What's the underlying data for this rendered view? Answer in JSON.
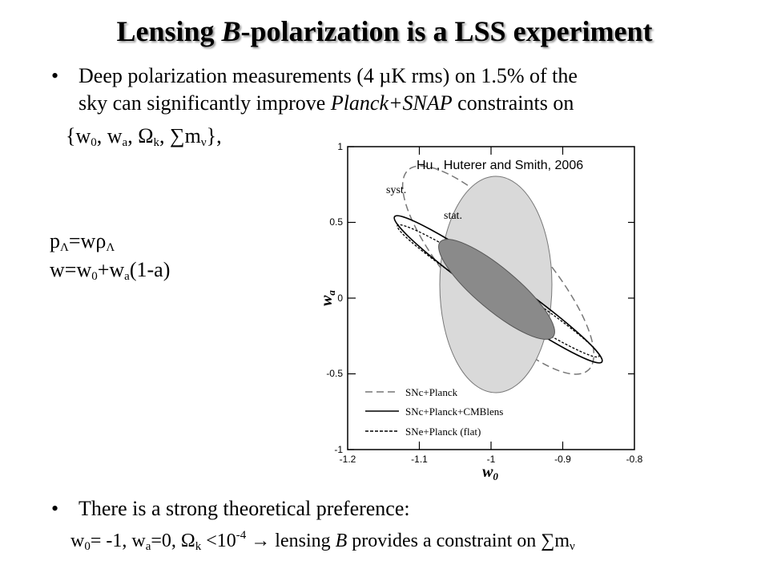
{
  "title": {
    "pre": "Lensing ",
    "italic": "B",
    "post": "-polarization is a LSS experiment"
  },
  "bullet1": {
    "line1": "Deep polarization measurements (4 µK rms) on 1.5% of the",
    "line2_pre": "sky can significantly improve ",
    "line2_italic": "Planck+SNAP",
    "line2_post": " constraints on"
  },
  "params": {
    "open": "{w",
    "s0": "0",
    "c1": ", w",
    "sa": "a",
    "c2": ", Ω",
    "sk": "k",
    "c3": ", ∑m",
    "snu": "ν",
    "close": "},"
  },
  "eq1": {
    "p": "p",
    "s1": "Λ",
    "mid": "=wρ",
    "s2": "Λ"
  },
  "eq2": {
    "a": "w=w",
    "s0": "0",
    "b": "+w",
    "sa": "a",
    "c": "(1-a)"
  },
  "bullet2": "There is a strong theoretical preference:",
  "bottom": {
    "a": "w",
    "s0": "0",
    "b": "= -1, w",
    "sa": "a",
    "c": "=0, Ω",
    "sk": "k",
    "d": " <10",
    "exp": "-4",
    "e": " → lensing ",
    "italic": "B",
    "f": " provides a constraint on ∑m",
    "snu": "ν"
  },
  "figure": {
    "credit": "Hu , Huterer and Smith, 2006",
    "label_syst": "syst.",
    "label_stat": "stat.",
    "y_axis_label": "w",
    "y_axis_sub": "a",
    "x_axis_label": "w",
    "x_axis_sub": "0",
    "x_ticks": [
      "-1.2",
      "-1.1",
      "-1",
      "-0.9",
      "-0.8"
    ],
    "y_ticks": [
      "1",
      "0.5",
      "0",
      "-0.5",
      "-1"
    ],
    "legend": [
      "SNc+Planck",
      "SNc+Planck+CMBlens",
      "SNe+Planck (flat)"
    ]
  }
}
